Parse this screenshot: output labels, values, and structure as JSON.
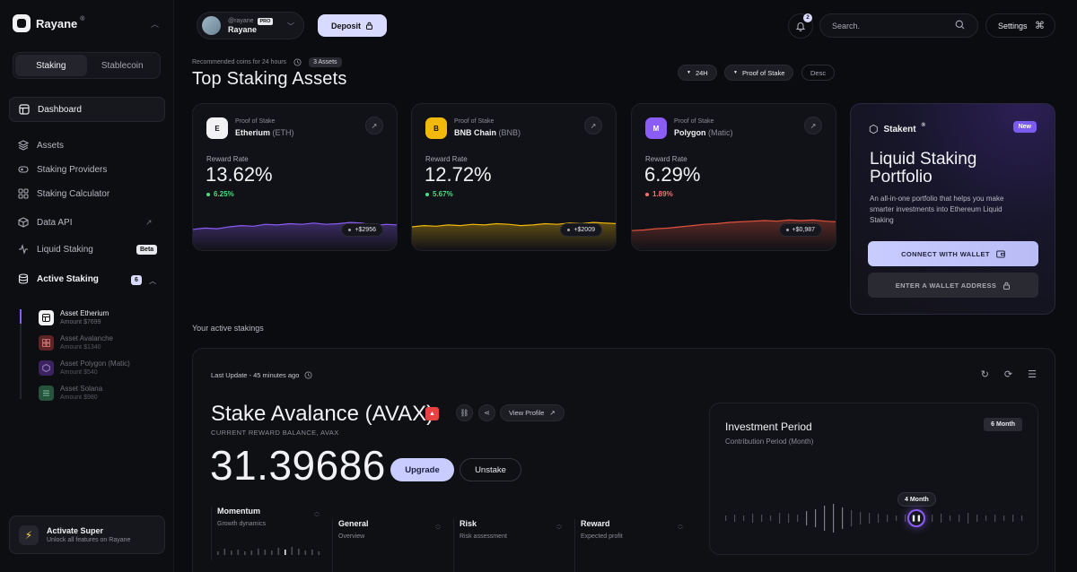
{
  "brand": {
    "name": "Rayane",
    "reg": "®"
  },
  "segment": {
    "items": [
      "Staking",
      "Stablecoin"
    ],
    "active": 0
  },
  "nav": {
    "dashboard": "Dashboard",
    "assets": "Assets",
    "providers": "Staking Providers",
    "calculator": "Staking Calculator",
    "data_api": "Data API",
    "liquid": "Liquid Staking",
    "liquid_badge": "Beta",
    "active": "Active Staking",
    "active_count": "6"
  },
  "active_assets": [
    {
      "title": "Asset Etherium",
      "sub": "Amount $7699"
    },
    {
      "title": "Asset Avalanche",
      "sub": "Amount $1340"
    },
    {
      "title": "Asset Polygon (Matic)",
      "sub": "Amount $540"
    },
    {
      "title": "Asset Solana",
      "sub": "Amount $980"
    }
  ],
  "super": {
    "title": "Activate Super",
    "sub": "Unlock all features on Rayane"
  },
  "user": {
    "handle": "@rayane",
    "plan": "PRO",
    "name": "Rayane"
  },
  "header": {
    "deposit": "Deposit",
    "notifications": "2",
    "search_placeholder": "Search.",
    "settings": "Settings"
  },
  "overview": {
    "recommended": "Recommended coins for 24 hours",
    "assets_count": "3 Assets",
    "title": "Top Staking Assets",
    "filters": [
      "24H",
      "Proof of Stake",
      "Desc"
    ]
  },
  "coins": [
    {
      "letter": "E",
      "cat": "Proof of Stake",
      "name": "Etherium",
      "symbol": "(ETH)",
      "rate_label": "Reward Rate",
      "rate": "13.62%",
      "change": "6.25%",
      "amount": "+$2956",
      "trend": "up",
      "color": "#8b5cf6",
      "spark": [
        16,
        18,
        17,
        20,
        22,
        21,
        24,
        23,
        25,
        24,
        26,
        24,
        25,
        27,
        26,
        22,
        24,
        23
      ]
    },
    {
      "letter": "B",
      "cat": "Proof of Stake",
      "name": "BNB Chain",
      "symbol": "(BNB)",
      "rate_label": "Reward Rate",
      "rate": "12.72%",
      "change": "5.67%",
      "amount": "+$2009",
      "trend": "up",
      "color": "#f0b90b",
      "spark": [
        20,
        22,
        21,
        23,
        22,
        24,
        23,
        25,
        24,
        22,
        23,
        25,
        24,
        26,
        25,
        27,
        26,
        25
      ]
    },
    {
      "letter": "M",
      "cat": "Proof of Stake",
      "name": "Polygon",
      "symbol": "(Matic)",
      "rate_label": "Reward Rate",
      "rate": "6.29%",
      "change": "1.89%",
      "amount": "+$0,987",
      "trend": "down",
      "color": "#e0523c",
      "spark": [
        14,
        15,
        17,
        18,
        20,
        22,
        24,
        25,
        27,
        28,
        29,
        30,
        29,
        31,
        30,
        31,
        29,
        28
      ]
    }
  ],
  "promo": {
    "brand": "Stakent",
    "reg": "®",
    "badge": "New",
    "title": "Liquid Staking Portfolio",
    "desc": "An all-in-one portfolio that helps you make smarter investments into Ethereum Liquid Staking",
    "connect": "CONNECT WITH WALLET",
    "enter": "ENTER A WALLET ADDRESS"
  },
  "active_section": "Your active stakings",
  "panel": {
    "last_update": "Last Update - 45 minutes ago",
    "title": "Stake Avalance (AVAX)",
    "view_profile": "View Profile",
    "balance_label": "CURRENT REWARD BALANCE, AVAX",
    "balance": "31.39686",
    "upgrade": "Upgrade",
    "unstake": "Unstake",
    "metrics": [
      {
        "name": "Momentum",
        "sub": "Growth dynamics",
        "bars": [
          4,
          7,
          5,
          6,
          4,
          5,
          7,
          6,
          5,
          8,
          6,
          9,
          7,
          5,
          6,
          4
        ]
      },
      {
        "name": "General",
        "sub": "Overview"
      },
      {
        "name": "Risk",
        "sub": "Risk assessment"
      },
      {
        "name": "Reward",
        "sub": "Expected profit"
      }
    ],
    "invest": {
      "title": "Investment Period",
      "sub": "Contribution Period (Month)",
      "badge": "6 Month",
      "selected": "4 Month",
      "bars": [
        3,
        4,
        3,
        5,
        4,
        3,
        6,
        5,
        4,
        8,
        10,
        14,
        16,
        12,
        9,
        7,
        6,
        5,
        4,
        3,
        4,
        5,
        3,
        4,
        5,
        3,
        4,
        6,
        4,
        3,
        4,
        3,
        4,
        3
      ]
    }
  }
}
